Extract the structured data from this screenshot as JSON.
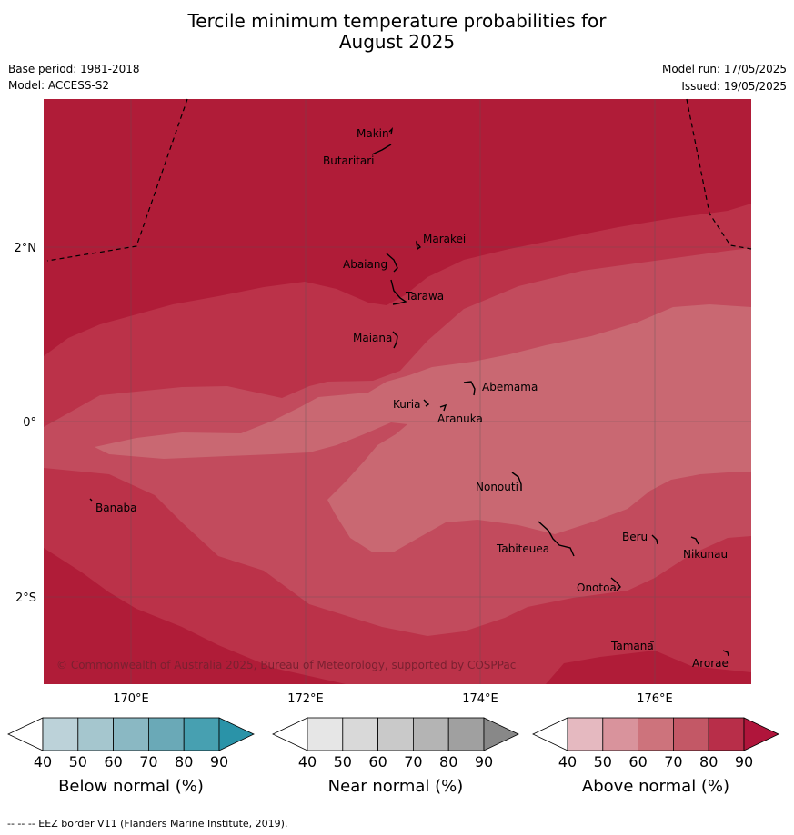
{
  "header": {
    "title_line1": "Tercile minimum temperature probabilities for",
    "title_line2": "August 2025",
    "base_period": "Base period: 1981-2018",
    "model": "Model: ACCESS-S2",
    "model_run": "Model run: 17/05/2025",
    "issued": "Issued: 19/05/2025"
  },
  "map": {
    "lat_labels": [
      "2°N",
      "0°",
      "2°S"
    ],
    "lon_labels": [
      "170°E",
      "172°E",
      "174°E",
      "176°E"
    ],
    "copyright": "© Commonwealth of Australia 2025, Bureau of Meteorology, supported by COSPPac",
    "islands": [
      "Makin",
      "Butaritari",
      "Marakei",
      "Abaiang",
      "Tarawa",
      "Maiana",
      "Abemama",
      "Kuria",
      "Aranuka",
      "Nonouti",
      "Banaba",
      "Tabiteuea",
      "Beru",
      "Nikunau",
      "Onotoa",
      "Tamana",
      "Arorae"
    ],
    "colors": {
      "above_80_90": "#b01c38",
      "above_70_80": "#bb3249",
      "above_60_70": "#c24b5d",
      "above_50_60": "#c96872"
    }
  },
  "colorbars": [
    {
      "label": "Below normal (%)",
      "ticks": [
        "40",
        "50",
        "60",
        "70",
        "80",
        "90"
      ],
      "colors": [
        "#ffffff",
        "#bcd2d9",
        "#a5c6ce",
        "#8ab8c3",
        "#6aa9b7",
        "#47a0b1",
        "#2a93a8"
      ]
    },
    {
      "label": "Near normal (%)",
      "ticks": [
        "40",
        "50",
        "60",
        "70",
        "80",
        "90"
      ],
      "colors": [
        "#ffffff",
        "#e6e6e6",
        "#d9d9d9",
        "#c9c9c9",
        "#b4b4b4",
        "#a0a0a0",
        "#888888"
      ]
    },
    {
      "label": "Above normal (%)",
      "ticks": [
        "40",
        "50",
        "60",
        "70",
        "80",
        "90"
      ],
      "colors": [
        "#ffffff",
        "#e5b9c0",
        "#d9939c",
        "#cd737c",
        "#c35866",
        "#b82e49",
        "#b0153b"
      ]
    }
  ],
  "footnote": "--  --  -- EEZ border V11 (Flanders Marine Institute, 2019)."
}
